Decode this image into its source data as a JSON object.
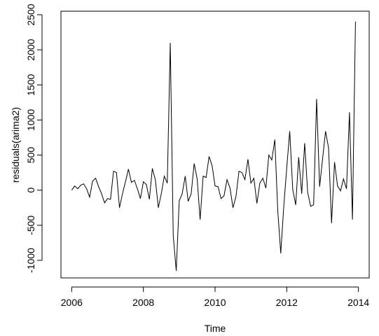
{
  "chart_data": {
    "type": "line",
    "title": "",
    "xlabel": "Time",
    "ylabel": "residuals(arima2)",
    "xlim": [
      2005.7,
      2014.3
    ],
    "ylim": [
      -1250,
      2550
    ],
    "x_ticks": [
      2006,
      2008,
      2010,
      2012,
      2014
    ],
    "x_tick_labels": [
      "2006",
      "2008",
      "2010",
      "2012",
      "2014"
    ],
    "y_ticks": [
      -1000,
      -500,
      0,
      500,
      1000,
      1500,
      2000,
      2500
    ],
    "y_tick_labels": [
      "-1000",
      "-500",
      "0",
      "500",
      "1000",
      "1500",
      "2000",
      "2500"
    ],
    "grid": false,
    "legend": "none",
    "line_color": "#000000",
    "x": [
      2006.0,
      2006.083,
      2006.167,
      2006.25,
      2006.333,
      2006.417,
      2006.5,
      2006.583,
      2006.667,
      2006.75,
      2006.833,
      2006.917,
      2007.0,
      2007.083,
      2007.167,
      2007.25,
      2007.333,
      2007.417,
      2007.5,
      2007.583,
      2007.667,
      2007.75,
      2007.833,
      2007.917,
      2008.0,
      2008.083,
      2008.167,
      2008.25,
      2008.333,
      2008.417,
      2008.5,
      2008.583,
      2008.667,
      2008.75,
      2008.833,
      2008.917,
      2009.0,
      2009.083,
      2009.167,
      2009.25,
      2009.333,
      2009.417,
      2009.5,
      2009.583,
      2009.667,
      2009.75,
      2009.833,
      2009.917,
      2010.0,
      2010.083,
      2010.167,
      2010.25,
      2010.333,
      2010.417,
      2010.5,
      2010.583,
      2010.667,
      2010.75,
      2010.833,
      2010.917,
      2011.0,
      2011.083,
      2011.167,
      2011.25,
      2011.333,
      2011.417,
      2011.5,
      2011.583,
      2011.667,
      2011.75,
      2011.833,
      2011.917,
      2012.0,
      2012.083,
      2012.167,
      2012.25,
      2012.333,
      2012.417,
      2012.5,
      2012.583,
      2012.667,
      2012.75,
      2012.833,
      2012.917,
      2013.0,
      2013.083,
      2013.167,
      2013.25,
      2013.333,
      2013.417,
      2013.5,
      2013.583,
      2013.667,
      2013.75,
      2013.833,
      2013.917
    ],
    "values": [
      0,
      60,
      20,
      70,
      90,
      20,
      -100,
      130,
      170,
      50,
      -50,
      -180,
      -120,
      -130,
      270,
      250,
      -250,
      -50,
      120,
      300,
      110,
      140,
      20,
      -120,
      120,
      80,
      -130,
      310,
      150,
      -250,
      -50,
      200,
      100,
      2100,
      -650,
      -1150,
      -150,
      -50,
      200,
      -160,
      -50,
      380,
      160,
      -420,
      200,
      180,
      480,
      350,
      60,
      50,
      -120,
      -80,
      150,
      30,
      -250,
      -90,
      270,
      250,
      150,
      440,
      100,
      170,
      -190,
      100,
      170,
      30,
      500,
      430,
      720,
      -300,
      -900,
      -230,
      320,
      840,
      10,
      -210,
      470,
      -50,
      670,
      -30,
      -230,
      -210,
      1300,
      50,
      450,
      840,
      600,
      -470,
      400,
      60,
      -10,
      160,
      20,
      1110,
      -420,
      2400
    ]
  }
}
